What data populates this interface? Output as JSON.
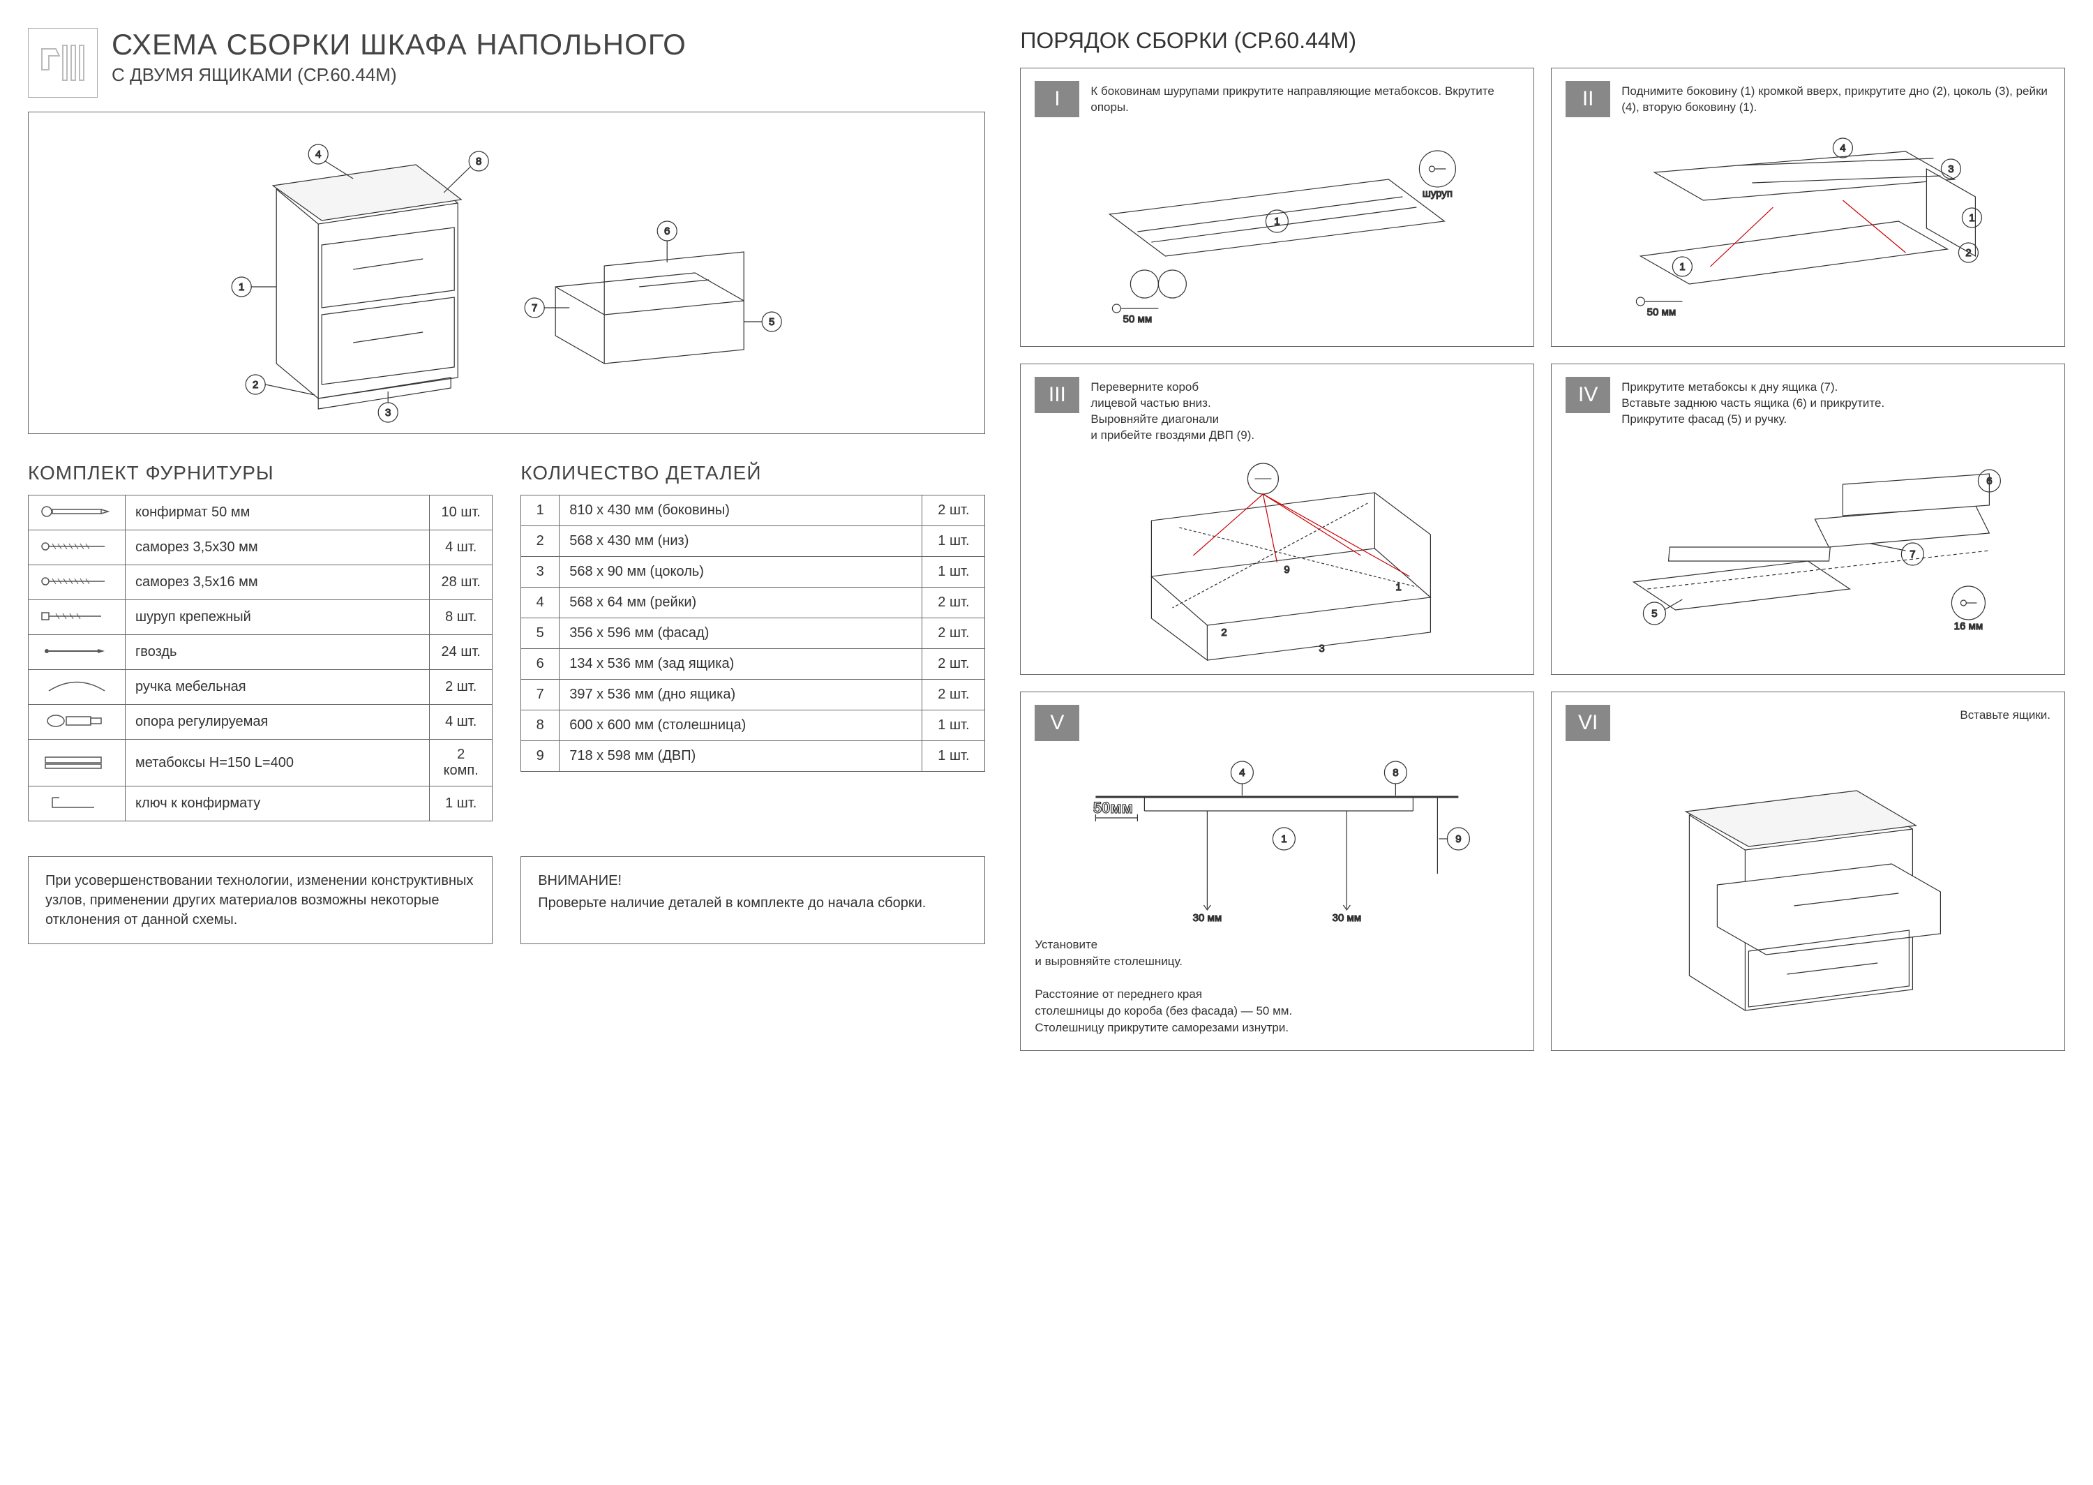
{
  "header": {
    "title": "СХЕМА СБОРКИ ШКАФА НАПОЛЬНОГО",
    "subtitle": "С ДВУМЯ ЯЩИКАМИ (СР.60.44М)"
  },
  "sections": {
    "hardware_title": "КОМПЛЕКТ ФУРНИТУРЫ",
    "parts_title": "КОЛИЧЕСТВО ДЕТАЛЕЙ",
    "assembly_title": "ПОРЯДОК СБОРКИ (СР.60.44М)"
  },
  "hardware": [
    {
      "icon": "конфирмат",
      "name": "конфирмат 50 мм",
      "qty": "10 шт."
    },
    {
      "icon": "саморез",
      "name": "саморез 3,5х30 мм",
      "qty": "4 шт."
    },
    {
      "icon": "саморез",
      "name": "саморез 3,5х16 мм",
      "qty": "28 шт."
    },
    {
      "icon": "шуруп",
      "name": "шуруп крепежный",
      "qty": "8 шт."
    },
    {
      "icon": "гвоздь",
      "name": "гвоздь",
      "qty": "24 шт."
    },
    {
      "icon": "ручка",
      "name": "ручка мебельная",
      "qty": "2 шт."
    },
    {
      "icon": "опора",
      "name": "опора регулируемая",
      "qty": "4 шт."
    },
    {
      "icon": "метабокс",
      "name": "метабоксы H=150 L=400",
      "qty": "2 комп."
    },
    {
      "icon": "ключ",
      "name": "ключ к конфирмату",
      "qty": "1 шт."
    }
  ],
  "parts": [
    {
      "num": "1",
      "desc": "810 х 430 мм (боковины)",
      "qty": "2 шт."
    },
    {
      "num": "2",
      "desc": "568 х 430 мм (низ)",
      "qty": "1 шт."
    },
    {
      "num": "3",
      "desc": "568 х 90 мм (цоколь)",
      "qty": "1 шт."
    },
    {
      "num": "4",
      "desc": "568 х 64 мм (рейки)",
      "qty": "2 шт."
    },
    {
      "num": "5",
      "desc": "356 х 596 мм (фасад)",
      "qty": "2 шт."
    },
    {
      "num": "6",
      "desc": "134 х 536 мм (зад ящика)",
      "qty": "2 шт."
    },
    {
      "num": "7",
      "desc": "397 х 536 мм (дно ящика)",
      "qty": "2 шт."
    },
    {
      "num": "8",
      "desc": "600 х 600 мм (столешница)",
      "qty": "1 шт."
    },
    {
      "num": "9",
      "desc": "718 х 598 мм (ДВП)",
      "qty": "1 шт."
    }
  ],
  "notes": {
    "tech": "При усовершенствовании технологии, изменении конструктивных узлов, применении других материалов возможны некоторые отклонения от данной схемы.",
    "warn_title": "ВНИМАНИЕ!",
    "warn_text": "Проверьте наличие деталей в комплекте до начала сборки."
  },
  "steps": [
    {
      "num": "I",
      "text": "К боковинам шурупами прикрутите направляющие метабоксов. Вкрутите опоры.",
      "labels": {
        "screw": "шуруп",
        "size": "50 мм",
        "part1": "1"
      }
    },
    {
      "num": "II",
      "text": "Поднимите боковину (1) кромкой вверх, прикрутите дно (2), цоколь (3), рейки (4), вторую боковину (1).",
      "labels": {
        "size": "50 мм",
        "p1": "1",
        "p2": "2",
        "p3": "3",
        "p4": "4"
      }
    },
    {
      "num": "III",
      "text": "Переверните короб\nлицевой частью вниз.\nВыровняйте диагонали\nи прибейте гвоздями ДВП (9).",
      "labels": {
        "p1": "1",
        "p2": "2",
        "p3": "3",
        "p9": "9"
      }
    },
    {
      "num": "IV",
      "text": "Прикрутите метабоксы к дну ящика (7).\nВставьте заднюю часть ящика (6) и прикрутите.\nПрикрутите фасад (5) и ручку.",
      "labels": {
        "p5": "5",
        "p6": "6",
        "p7": "7",
        "size": "16 мм"
      }
    },
    {
      "num": "V",
      "text": "",
      "labels": {
        "dim": "50мм",
        "s30a": "30 мм",
        "s30b": "30 мм",
        "p1": "1",
        "p4": "4",
        "p8": "8",
        "p9": "9"
      },
      "footnote": "Установите\nи выровняйте столешницу.\n\nРасстояние от переднего края\nстолешницы до короба (без фасада) — 50 мм.\nСтолешницу прикрутите саморезами изнутри."
    },
    {
      "num": "VI",
      "text": "Вставьте ящики.",
      "text_align": "right"
    }
  ],
  "overview_callouts": [
    "1",
    "2",
    "3",
    "4",
    "5",
    "6",
    "7",
    "8"
  ],
  "style": {
    "border_color": "#666666",
    "stepnum_bg": "#888888",
    "stepnum_fg": "#ffffff",
    "text_color": "#333333",
    "title_color": "#444444",
    "line_color": "#333333"
  }
}
